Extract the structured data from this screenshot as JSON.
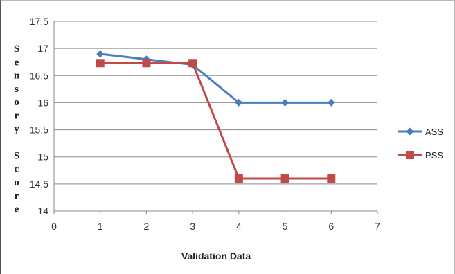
{
  "chart_data": {
    "type": "line",
    "xlabel": "Validation Data",
    "ylabel": "Sensory Score",
    "xlim": [
      0,
      7
    ],
    "ylim": [
      14,
      17.5
    ],
    "x_ticks": [
      0,
      1,
      2,
      3,
      4,
      5,
      6,
      7
    ],
    "y_ticks": [
      14,
      14.5,
      15,
      15.5,
      16,
      16.5,
      17,
      17.5
    ],
    "grid": "horizontal",
    "legend": "right",
    "series": [
      {
        "name": "ASS",
        "color": "#4a7ebb",
        "marker": "diamond",
        "x": [
          1,
          2,
          3,
          4,
          5,
          6
        ],
        "values": [
          16.9,
          16.8,
          16.7,
          16.0,
          16.0,
          16.0
        ]
      },
      {
        "name": "PSS",
        "color": "#be4b48",
        "marker": "square",
        "x": [
          1,
          2,
          3,
          4,
          5,
          6
        ],
        "values": [
          16.73,
          16.73,
          16.73,
          14.6,
          14.6,
          14.6
        ]
      }
    ]
  }
}
